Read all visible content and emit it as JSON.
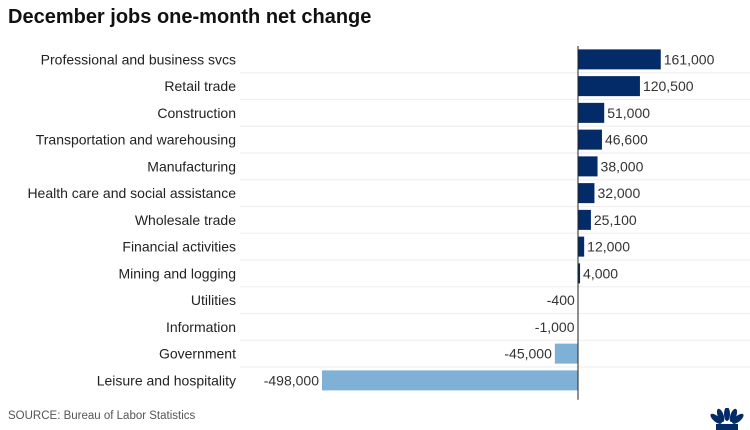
{
  "chart_data": {
    "type": "bar",
    "orientation": "horizontal",
    "title": "December jobs one-month net change",
    "categories": [
      "Professional and business svcs",
      "Retail trade",
      "Construction",
      "Transportation and warehousing",
      "Manufacturing",
      "Health care and social assistance",
      "Wholesale trade",
      "Financial activities",
      "Mining and logging",
      "Utilities",
      "Information",
      "Government",
      "Leisure and hospitality"
    ],
    "values": [
      161000,
      120500,
      51000,
      46600,
      38000,
      32000,
      25100,
      12000,
      4000,
      -400,
      -1000,
      -45000,
      -498000
    ],
    "data_labels": [
      "161,000",
      "120,500",
      "51,000",
      "46,600",
      "38,000",
      "32,000",
      "25,100",
      "12,000",
      "4,000",
      "-400",
      "-1,000",
      "-45,000",
      "-498,000"
    ],
    "colors": {
      "positive": "#022b67",
      "negative": "#7fb0d6"
    },
    "grid": true,
    "legend": "none"
  },
  "source": "SOURCE: Bureau of Labor Statistics",
  "logo": {
    "icon": "cnbc-peacock-icon",
    "text": "CNBC",
    "color": "#022b67"
  }
}
